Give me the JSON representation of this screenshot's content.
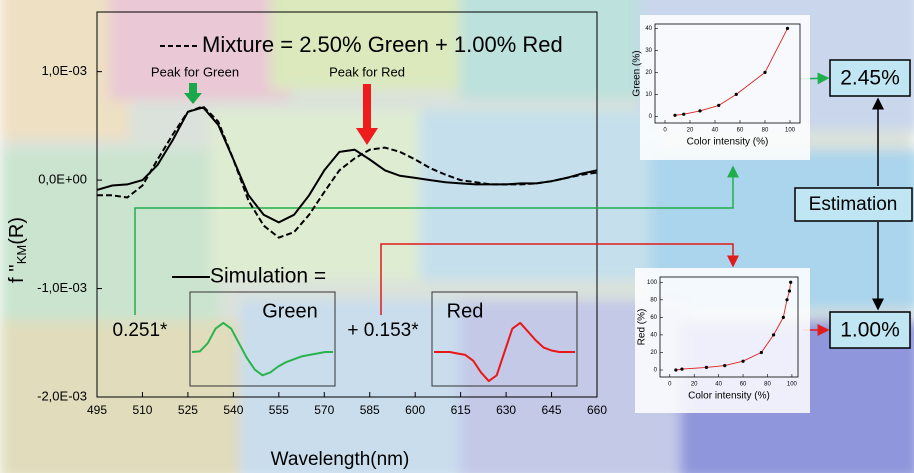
{
  "chart_data": [
    {
      "type": "line",
      "xlabel": "Wavelength(nm)",
      "ylabel": {
        "main": "f ''",
        "sub": "KM",
        "end": "(R)"
      },
      "x": [
        495,
        500,
        505,
        510,
        515,
        520,
        525,
        530,
        535,
        540,
        545,
        550,
        555,
        560,
        565,
        570,
        575,
        580,
        585,
        590,
        595,
        600,
        605,
        610,
        615,
        620,
        625,
        630,
        635,
        640,
        645,
        650,
        655,
        660
      ],
      "series": [
        {
          "name": "Mixture = 2.50% Green + 1.00% Red",
          "color": "#000000",
          "dashed": true,
          "values": [
            -0.00014,
            -0.00014,
            -0.00016,
            -5e-05,
            0.00019,
            0.00042,
            0.00063,
            0.00068,
            0.00054,
            0.00019,
            -0.00019,
            -0.00042,
            -0.00053,
            -0.00048,
            -0.00032,
            -0.00011,
            9e-05,
            0.0002,
            0.00028,
            0.0003,
            0.00026,
            0.00019,
            0.00011,
            5e-05,
            0,
            -2e-05,
            -4e-05,
            -4e-05,
            -4e-05,
            -3e-05,
            -1e-05,
            2e-05,
            5e-05,
            7e-05
          ]
        },
        {
          "name": "Simulation =",
          "color": "#000000",
          "dashed": false,
          "values": [
            -9e-05,
            -5e-05,
            -4e-05,
            0,
            0.00014,
            0.00037,
            0.00063,
            0.00067,
            0.00051,
            0.00019,
            -0.00014,
            -0.00032,
            -0.00039,
            -0.00032,
            -0.00014,
            9e-05,
            0.00026,
            0.00028,
            0.00019,
            9e-05,
            4e-05,
            2e-05,
            0,
            -2e-05,
            -3e-05,
            -4e-05,
            -4e-05,
            -4e-05,
            -3e-05,
            -3e-05,
            -1e-05,
            2e-05,
            6e-05,
            9e-05
          ]
        }
      ],
      "xlim": [
        495,
        660
      ],
      "xticks": [
        495,
        510,
        525,
        540,
        555,
        570,
        585,
        600,
        615,
        630,
        645,
        660
      ],
      "ylim": [
        -0.002,
        0.00155
      ],
      "yticks": [
        {
          "value": 0.001,
          "label": "1,0E-03"
        },
        {
          "value": 0,
          "label": "0,0E+00"
        },
        {
          "value": -0.001,
          "label": "-1,0E-03"
        },
        {
          "value": -0.002,
          "label": "-2,0E-03"
        }
      ],
      "annotations": [
        {
          "text": "Peak for Green",
          "color": "#19a84a"
        },
        {
          "text": "Peak for Red",
          "color": "#ee1c1c"
        }
      ]
    },
    {
      "type": "component",
      "title": "Green",
      "color": "#28b44a",
      "ylim": [
        -1.1,
        1.1
      ],
      "values": [
        0,
        0.02,
        0.3,
        0.8,
        1,
        0.8,
        0.3,
        -0.2,
        -0.6,
        -0.8,
        -0.7,
        -0.5,
        -0.35,
        -0.25,
        -0.15,
        -0.1,
        -0.05,
        0,
        0
      ]
    },
    {
      "type": "component",
      "title": "Red",
      "color": "#e81818",
      "ylim": [
        -1.1,
        1.1
      ],
      "values": [
        0,
        0,
        0,
        -0.05,
        -0.1,
        -0.3,
        -0.7,
        -1,
        -0.8,
        0,
        0.8,
        1,
        0.7,
        0.4,
        0.15,
        0.05,
        0,
        0,
        0
      ]
    },
    {
      "type": "scatter",
      "xlabel": "Color intensity (%)",
      "ylabel": "Green (%)",
      "color": "#000000",
      "fit_color": "#e02020",
      "x": [
        8,
        15,
        28,
        43,
        57,
        80,
        98
      ],
      "values": [
        0.5,
        1,
        2.5,
        5,
        10,
        20,
        40
      ],
      "xlim": [
        -8,
        108
      ],
      "xticks": [
        0,
        20,
        40,
        60,
        80,
        100
      ],
      "ylim": [
        -3,
        42
      ],
      "yticks": [
        0,
        10,
        20,
        30,
        40
      ]
    },
    {
      "type": "scatter",
      "xlabel": "Color intensity (%)",
      "ylabel": "Red (%)",
      "color": "#000000",
      "fit_color": "#e02020",
      "x": [
        5,
        10,
        30,
        45,
        60,
        75,
        85,
        93,
        96,
        98,
        99
      ],
      "values": [
        0,
        1,
        3,
        5,
        10,
        20,
        40,
        60,
        80,
        90,
        100
      ],
      "xlim": [
        -8,
        105
      ],
      "xticks": [
        0,
        20,
        40,
        60,
        80,
        100
      ],
      "ylim": [
        -8,
        106
      ],
      "yticks": [
        0,
        20,
        40,
        60,
        80,
        100
      ]
    }
  ],
  "diagram": {
    "coefficients": [
      "0.251*",
      "+ 0.153*"
    ],
    "boxes": [
      "2.45%",
      "Estimation",
      "1.00%"
    ]
  }
}
